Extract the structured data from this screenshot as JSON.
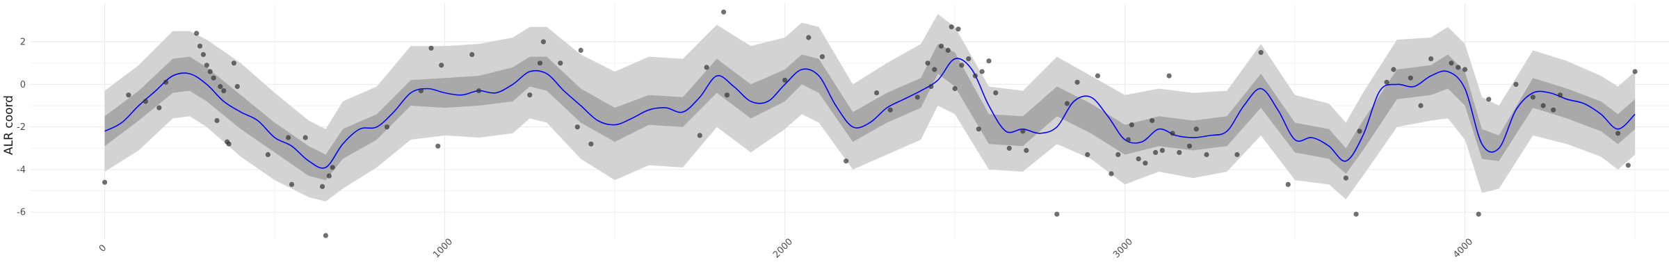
{
  "chart_data": {
    "type": "line",
    "title": "",
    "xlabel": "",
    "ylabel": "ALR coord",
    "xlim": [
      -220,
      4600
    ],
    "ylim": [
      -7.3,
      3.8
    ],
    "x_ticks": [
      0,
      1000,
      2000,
      3000,
      4000
    ],
    "x_tick_labels": [
      "0",
      "1000",
      "2000",
      "3000",
      "4000"
    ],
    "y_ticks": [
      -6,
      -4,
      -2,
      0,
      2
    ],
    "y_tick_labels": [
      "-6",
      "-4",
      "-2",
      "0",
      "2"
    ],
    "grid": true,
    "legend": "none",
    "colors": {
      "line": "#0000ff",
      "inner_band": "#a9a9a9",
      "outer_band": "#d3d3d3",
      "points": "#333333",
      "grid": "#ebebeb"
    },
    "series": [
      {
        "kind": "posterior_mean",
        "x": [
          0,
          50,
          100,
          150,
          200,
          250,
          300,
          350,
          400,
          450,
          500,
          550,
          600,
          650,
          700,
          750,
          800,
          850,
          900,
          950,
          1000,
          1050,
          1100,
          1150,
          1200,
          1250,
          1300,
          1350,
          1400,
          1450,
          1500,
          1550,
          1600,
          1650,
          1700,
          1750,
          1800,
          1850,
          1900,
          1950,
          2000,
          2050,
          2100,
          2150,
          2200,
          2250,
          2300,
          2350,
          2400,
          2450,
          2500,
          2550,
          2600,
          2650,
          2700,
          2750,
          2800,
          2850,
          2900,
          2950,
          3000,
          3050,
          3100,
          3150,
          3200,
          3250,
          3300,
          3350,
          3400,
          3450,
          3500,
          3550,
          3600,
          3650,
          3700,
          3750,
          3800,
          3850,
          3900,
          3950,
          4000,
          4050,
          4100,
          4150,
          4200,
          4250,
          4300,
          4350,
          4400,
          4450,
          4500
        ],
        "y": [
          -2.2,
          -1.8,
          -1.0,
          -0.3,
          0.4,
          0.5,
          0.0,
          -0.8,
          -1.3,
          -1.7,
          -2.5,
          -2.9,
          -3.6,
          -3.9,
          -2.8,
          -2.1,
          -2.0,
          -1.3,
          -0.4,
          -0.2,
          -0.4,
          -0.5,
          -0.3,
          -0.4,
          0.0,
          0.6,
          0.5,
          -0.3,
          -1.0,
          -1.7,
          -1.9,
          -1.6,
          -1.2,
          -1.1,
          -1.3,
          -0.6,
          0.4,
          -0.1,
          -0.8,
          -0.8,
          0.0,
          0.7,
          0.4,
          -1.0,
          -2.0,
          -1.8,
          -1.1,
          -0.7,
          -0.3,
          0.2,
          1.2,
          0.7,
          -1.0,
          -2.2,
          -2.1,
          -2.3,
          -2.0,
          -0.8,
          -0.6,
          -1.5,
          -2.6,
          -2.7,
          -2.1,
          -2.4,
          -2.5,
          -2.4,
          -2.2,
          -1.0,
          -0.2,
          -1.2,
          -2.6,
          -2.5,
          -2.9,
          -3.6,
          -2.4,
          -0.3,
          0.0,
          -0.1,
          0.4,
          0.6,
          -0.2,
          -2.8,
          -3.0,
          -1.2,
          -0.4,
          -0.4,
          -0.7,
          -0.9,
          -1.4,
          -2.1,
          -1.4
        ]
      },
      {
        "kind": "inner_interval",
        "x": [
          0,
          100,
          200,
          250,
          300,
          400,
          500,
          600,
          650,
          700,
          800,
          900,
          1000,
          1100,
          1200,
          1250,
          1300,
          1400,
          1500,
          1600,
          1700,
          1800,
          1900,
          2000,
          2050,
          2100,
          2200,
          2300,
          2400,
          2450,
          2500,
          2600,
          2700,
          2800,
          2900,
          3000,
          3100,
          3200,
          3300,
          3400,
          3500,
          3600,
          3650,
          3700,
          3800,
          3900,
          3950,
          4000,
          4050,
          4100,
          4200,
          4300,
          4400,
          4450,
          4500
        ],
        "lower": [
          -2.9,
          -1.7,
          -0.4,
          -0.3,
          -0.8,
          -2.1,
          -3.2,
          -4.3,
          -4.5,
          -3.5,
          -2.6,
          -1.0,
          -1.1,
          -1.0,
          -0.8,
          -0.1,
          -0.3,
          -1.8,
          -2.7,
          -1.9,
          -2.0,
          -0.4,
          -1.6,
          -0.8,
          0.0,
          -0.4,
          -2.7,
          -1.8,
          -1.1,
          0.5,
          -0.1,
          -2.8,
          -2.9,
          -1.5,
          -2.3,
          -3.3,
          -2.9,
          -3.1,
          -2.9,
          -1.1,
          -3.2,
          -3.5,
          -4.2,
          -3.1,
          -0.7,
          -0.5,
          -0.2,
          -1.0,
          -3.5,
          -3.6,
          -1.1,
          -1.6,
          -2.2,
          -2.8,
          -2.1
        ],
        "upper": [
          -1.5,
          -0.3,
          1.2,
          1.3,
          0.8,
          -0.5,
          -1.8,
          -2.9,
          -3.3,
          -2.1,
          -1.4,
          0.2,
          0.3,
          0.4,
          0.8,
          1.3,
          1.3,
          -0.2,
          -1.1,
          -0.5,
          -0.6,
          1.2,
          0.0,
          0.7,
          1.4,
          1.2,
          -1.3,
          -0.4,
          0.3,
          1.9,
          1.5,
          -1.4,
          -1.5,
          -0.1,
          -0.9,
          -1.9,
          -1.5,
          -1.7,
          -1.5,
          0.5,
          -1.8,
          -2.1,
          -3.0,
          -1.7,
          0.7,
          0.9,
          1.4,
          0.6,
          -2.1,
          -2.4,
          0.3,
          -0.2,
          -0.8,
          -1.4,
          -0.7
        ]
      },
      {
        "kind": "outer_interval",
        "x": [
          0,
          100,
          200,
          250,
          300,
          400,
          500,
          600,
          650,
          700,
          800,
          900,
          1000,
          1100,
          1200,
          1250,
          1300,
          1400,
          1500,
          1600,
          1700,
          1800,
          1900,
          2000,
          2050,
          2100,
          2200,
          2300,
          2400,
          2450,
          2500,
          2600,
          2700,
          2800,
          2900,
          3000,
          3100,
          3200,
          3300,
          3400,
          3500,
          3600,
          3650,
          3700,
          3800,
          3900,
          3950,
          4000,
          4050,
          4100,
          4200,
          4300,
          4400,
          4450,
          4500
        ],
        "lower": [
          -4.1,
          -3.1,
          -1.6,
          -1.5,
          -2.0,
          -3.4,
          -4.5,
          -5.3,
          -5.5,
          -4.9,
          -3.9,
          -2.6,
          -2.4,
          -2.5,
          -2.3,
          -1.6,
          -1.8,
          -3.5,
          -4.5,
          -3.8,
          -3.9,
          -2.0,
          -3.2,
          -2.1,
          -1.4,
          -1.8,
          -4.0,
          -3.3,
          -2.6,
          -1.0,
          -1.4,
          -4.0,
          -4.1,
          -2.8,
          -3.5,
          -4.7,
          -4.1,
          -4.4,
          -4.1,
          -2.4,
          -4.5,
          -4.7,
          -5.4,
          -4.3,
          -2.0,
          -1.7,
          -1.6,
          -2.6,
          -5.1,
          -4.9,
          -2.4,
          -2.8,
          -3.4,
          -4.0,
          -3.3
        ],
        "upper": [
          -0.3,
          0.9,
          2.5,
          2.5,
          2.1,
          1.0,
          -0.4,
          -1.7,
          -2.1,
          -0.8,
          -0.1,
          1.8,
          1.8,
          1.9,
          2.2,
          2.7,
          2.7,
          1.4,
          0.6,
          1.3,
          1.2,
          2.8,
          1.8,
          2.2,
          2.9,
          2.7,
          0.0,
          1.0,
          1.9,
          3.3,
          2.7,
          -0.1,
          -0.3,
          1.3,
          0.4,
          -0.5,
          -0.2,
          -0.4,
          -0.3,
          1.9,
          -0.5,
          -0.9,
          -1.8,
          -0.4,
          2.1,
          2.2,
          2.7,
          1.9,
          -0.6,
          -1.0,
          1.6,
          1.1,
          0.4,
          -0.1,
          0.6
        ]
      },
      {
        "kind": "observations",
        "points": [
          [
            0,
            -4.6
          ],
          [
            70,
            -0.5
          ],
          [
            120,
            -0.8
          ],
          [
            160,
            -1.1
          ],
          [
            180,
            0.1
          ],
          [
            270,
            2.4
          ],
          [
            280,
            1.8
          ],
          [
            290,
            1.4
          ],
          [
            300,
            0.9
          ],
          [
            310,
            0.6
          ],
          [
            320,
            0.3
          ],
          [
            330,
            -1.7
          ],
          [
            340,
            -0.1
          ],
          [
            350,
            -0.3
          ],
          [
            360,
            -2.7
          ],
          [
            365,
            -2.8
          ],
          [
            380,
            1.0
          ],
          [
            390,
            -0.1
          ],
          [
            480,
            -3.3
          ],
          [
            540,
            -2.5
          ],
          [
            550,
            -4.7
          ],
          [
            590,
            -2.5
          ],
          [
            640,
            -4.8
          ],
          [
            650,
            -7.1
          ],
          [
            660,
            -4.3
          ],
          [
            670,
            -3.9
          ],
          [
            830,
            -2.0
          ],
          [
            930,
            -0.3
          ],
          [
            960,
            1.7
          ],
          [
            980,
            -2.9
          ],
          [
            990,
            0.9
          ],
          [
            1080,
            1.4
          ],
          [
            1100,
            -0.3
          ],
          [
            1250,
            -0.5
          ],
          [
            1280,
            1.0
          ],
          [
            1290,
            2.0
          ],
          [
            1340,
            1.0
          ],
          [
            1390,
            -2.0
          ],
          [
            1400,
            1.6
          ],
          [
            1430,
            -2.8
          ],
          [
            1750,
            -2.4
          ],
          [
            1770,
            0.8
          ],
          [
            1820,
            3.4
          ],
          [
            1830,
            -0.5
          ],
          [
            2000,
            0.2
          ],
          [
            2070,
            2.2
          ],
          [
            2110,
            1.3
          ],
          [
            2180,
            -3.6
          ],
          [
            2270,
            -0.4
          ],
          [
            2310,
            -1.2
          ],
          [
            2390,
            -0.6
          ],
          [
            2420,
            1.0
          ],
          [
            2430,
            -0.1
          ],
          [
            2440,
            0.7
          ],
          [
            2460,
            1.8
          ],
          [
            2480,
            1.6
          ],
          [
            2490,
            2.7
          ],
          [
            2500,
            -0.2
          ],
          [
            2510,
            2.6
          ],
          [
            2520,
            0.9
          ],
          [
            2540,
            1.2
          ],
          [
            2560,
            0.4
          ],
          [
            2570,
            -2.1
          ],
          [
            2580,
            0.6
          ],
          [
            2600,
            1.1
          ],
          [
            2620,
            -0.4
          ],
          [
            2660,
            -3.0
          ],
          [
            2700,
            -2.2
          ],
          [
            2710,
            -3.1
          ],
          [
            2800,
            -6.1
          ],
          [
            2830,
            -0.9
          ],
          [
            2860,
            0.1
          ],
          [
            2890,
            -3.3
          ],
          [
            2920,
            0.4
          ],
          [
            2960,
            -4.2
          ],
          [
            2980,
            -3.3
          ],
          [
            3010,
            -2.6
          ],
          [
            3020,
            -1.9
          ],
          [
            3040,
            -3.5
          ],
          [
            3060,
            -3.7
          ],
          [
            3080,
            -1.7
          ],
          [
            3090,
            -3.2
          ],
          [
            3110,
            -3.1
          ],
          [
            3130,
            0.4
          ],
          [
            3140,
            -2.3
          ],
          [
            3160,
            -3.2
          ],
          [
            3190,
            -2.9
          ],
          [
            3210,
            -2.1
          ],
          [
            3240,
            -3.3
          ],
          [
            3330,
            -3.3
          ],
          [
            3400,
            1.5
          ],
          [
            3480,
            -4.7
          ],
          [
            3650,
            -4.4
          ],
          [
            3690,
            -2.2
          ],
          [
            3680,
            -6.1
          ],
          [
            3770,
            0.1
          ],
          [
            3790,
            0.7
          ],
          [
            3840,
            0.3
          ],
          [
            3870,
            -1.0
          ],
          [
            3900,
            1.2
          ],
          [
            3960,
            1.0
          ],
          [
            3980,
            0.8
          ],
          [
            4000,
            0.7
          ],
          [
            4040,
            -6.1
          ],
          [
            4070,
            -0.7
          ],
          [
            4150,
            0.0
          ],
          [
            4200,
            -0.6
          ],
          [
            4230,
            -1.0
          ],
          [
            4260,
            -1.2
          ],
          [
            4280,
            -0.5
          ],
          [
            4450,
            -2.3
          ],
          [
            4480,
            -3.8
          ],
          [
            4500,
            0.6
          ]
        ]
      }
    ]
  }
}
